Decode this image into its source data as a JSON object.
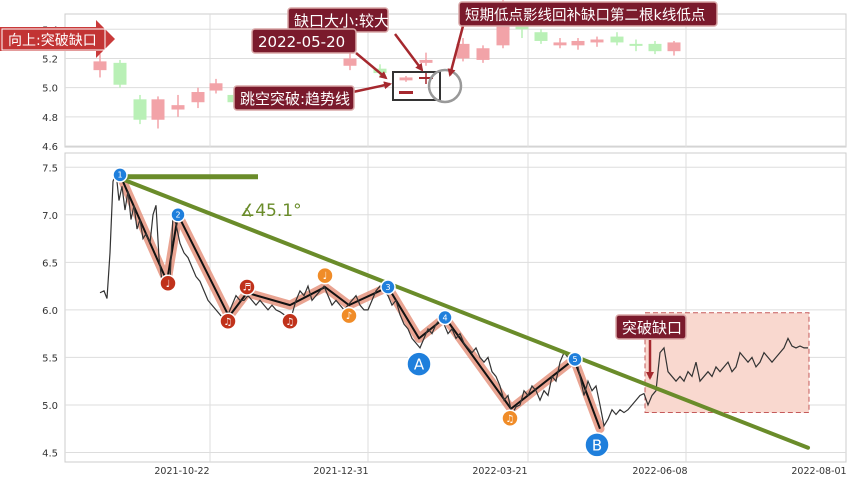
{
  "chart_data": [
    {
      "type": "candlestick",
      "y_ticks": [
        "5.4",
        "5.2",
        "5.0",
        "4.8",
        "4.6"
      ],
      "ylim": [
        4.6,
        5.45
      ],
      "candles": [
        {
          "x": 100,
          "open": 5.12,
          "close": 5.18,
          "high": 5.23,
          "low": 5.07
        },
        {
          "x": 120,
          "open": 5.17,
          "close": 5.02,
          "high": 5.19,
          "low": 5.0
        },
        {
          "x": 140,
          "open": 4.92,
          "close": 4.78,
          "high": 4.95,
          "low": 4.75
        },
        {
          "x": 158,
          "open": 4.78,
          "close": 4.92,
          "high": 4.94,
          "low": 4.72
        },
        {
          "x": 178,
          "open": 4.85,
          "close": 4.88,
          "high": 4.95,
          "low": 4.8
        },
        {
          "x": 198,
          "open": 4.9,
          "close": 4.97,
          "high": 5.0,
          "low": 4.86
        },
        {
          "x": 216,
          "open": 4.98,
          "close": 5.03,
          "high": 5.06,
          "low": 4.96
        },
        {
          "x": 234,
          "open": 4.95,
          "close": 4.9,
          "high": 4.97,
          "low": 4.87
        },
        {
          "x": 254,
          "open": 4.9,
          "close": 4.92,
          "high": 4.96,
          "low": 4.86
        },
        {
          "x": 272,
          "open": 4.88,
          "close": 4.93,
          "high": 4.95,
          "low": 4.86
        },
        {
          "x": 350,
          "open": 5.15,
          "close": 5.2,
          "high": 5.24,
          "low": 5.12
        },
        {
          "x": 380,
          "open": 5.13,
          "close": 5.1,
          "high": 5.16,
          "low": 5.08
        },
        {
          "x": 406,
          "open": 5.05,
          "close": 5.07,
          "high": 5.08,
          "low": 5.04
        },
        {
          "x": 426,
          "open": 5.17,
          "close": 5.19,
          "high": 5.24,
          "low": 5.15
        },
        {
          "x": 463,
          "open": 5.2,
          "close": 5.3,
          "high": 5.34,
          "low": 5.18
        },
        {
          "x": 483,
          "open": 5.19,
          "close": 5.27,
          "high": 5.29,
          "low": 5.17
        },
        {
          "x": 503,
          "open": 5.29,
          "close": 5.57,
          "high": 5.6,
          "low": 5.27
        },
        {
          "x": 522,
          "open": 5.52,
          "close": 5.4,
          "high": 5.55,
          "low": 5.34
        },
        {
          "x": 541,
          "open": 5.38,
          "close": 5.32,
          "high": 5.4,
          "low": 5.3
        },
        {
          "x": 560,
          "open": 5.29,
          "close": 5.31,
          "high": 5.34,
          "low": 5.27
        },
        {
          "x": 578,
          "open": 5.29,
          "close": 5.32,
          "high": 5.34,
          "low": 5.26
        },
        {
          "x": 597,
          "open": 5.31,
          "close": 5.33,
          "high": 5.35,
          "low": 5.28
        },
        {
          "x": 617,
          "open": 5.35,
          "close": 5.31,
          "high": 5.38,
          "low": 5.29
        },
        {
          "x": 636,
          "open": 5.3,
          "close": 5.29,
          "high": 5.33,
          "low": 5.25
        },
        {
          "x": 655,
          "open": 5.3,
          "close": 5.25,
          "high": 5.32,
          "low": 5.23
        },
        {
          "x": 674,
          "open": 5.25,
          "close": 5.31,
          "high": 5.32,
          "low": 5.22
        }
      ]
    },
    {
      "type": "line",
      "x_ticks": [
        "2021-10-22",
        "2021-12-31",
        "2022-03-21",
        "2022-06-08",
        "2022-08-01"
      ],
      "y_ticks": [
        "7.5",
        "7.0",
        "6.5",
        "6.0",
        "5.5",
        "5.0",
        "4.5"
      ],
      "ylim": [
        4.4,
        7.65
      ],
      "price_series": [
        [
          100,
          6.18
        ],
        [
          104,
          6.2
        ],
        [
          107,
          6.12
        ],
        [
          110,
          6.6
        ],
        [
          113,
          7.35
        ],
        [
          116,
          7.45
        ],
        [
          119,
          7.15
        ],
        [
          122,
          7.3
        ],
        [
          125,
          7.05
        ],
        [
          128,
          7.25
        ],
        [
          131,
          6.95
        ],
        [
          134,
          7.1
        ],
        [
          137,
          6.85
        ],
        [
          140,
          6.95
        ],
        [
          143,
          6.75
        ],
        [
          146,
          6.8
        ],
        [
          150,
          6.7
        ],
        [
          153,
          7.0
        ],
        [
          156,
          7.1
        ],
        [
          159,
          6.55
        ],
        [
          162,
          6.3
        ],
        [
          166,
          6.35
        ],
        [
          170,
          6.3
        ],
        [
          173,
          7.0
        ],
        [
          176,
          6.9
        ],
        [
          180,
          6.7
        ],
        [
          184,
          6.6
        ],
        [
          188,
          6.55
        ],
        [
          192,
          6.45
        ],
        [
          196,
          6.35
        ],
        [
          200,
          6.3
        ],
        [
          204,
          6.2
        ],
        [
          208,
          6.1
        ],
        [
          212,
          6.05
        ],
        [
          216,
          6.0
        ],
        [
          220,
          5.95
        ],
        [
          224,
          5.9
        ],
        [
          228,
          5.95
        ],
        [
          232,
          6.05
        ],
        [
          236,
          6.15
        ],
        [
          240,
          6.1
        ],
        [
          244,
          6.1
        ],
        [
          248,
          6.15
        ],
        [
          252,
          6.1
        ],
        [
          256,
          6.05
        ],
        [
          260,
          6.1
        ],
        [
          264,
          6.05
        ],
        [
          268,
          6.0
        ],
        [
          272,
          6.05
        ],
        [
          276,
          6.0
        ],
        [
          280,
          5.98
        ],
        [
          284,
          5.95
        ],
        [
          288,
          5.9
        ],
        [
          292,
          5.95
        ],
        [
          296,
          6.1
        ],
        [
          300,
          6.2
        ],
        [
          304,
          6.15
        ],
        [
          308,
          6.25
        ],
        [
          312,
          6.1
        ],
        [
          316,
          6.15
        ],
        [
          320,
          6.2
        ],
        [
          324,
          6.25
        ],
        [
          328,
          6.15
        ],
        [
          332,
          6.05
        ],
        [
          336,
          6.1
        ],
        [
          340,
          6.05
        ],
        [
          344,
          6.0
        ],
        [
          348,
          6.05
        ],
        [
          352,
          6.1
        ],
        [
          356,
          6.15
        ],
        [
          360,
          6.05
        ],
        [
          364,
          6.0
        ],
        [
          368,
          6.0
        ],
        [
          372,
          6.1
        ],
        [
          376,
          6.2
        ],
        [
          380,
          6.25
        ],
        [
          384,
          6.2
        ],
        [
          388,
          6.15
        ],
        [
          392,
          6.05
        ],
        [
          396,
          6.1
        ],
        [
          400,
          5.95
        ],
        [
          404,
          5.85
        ],
        [
          408,
          5.8
        ],
        [
          412,
          5.7
        ],
        [
          416,
          5.65
        ],
        [
          420,
          5.6
        ],
        [
          424,
          5.7
        ],
        [
          428,
          5.8
        ],
        [
          432,
          5.75
        ],
        [
          436,
          5.85
        ],
        [
          440,
          5.9
        ],
        [
          444,
          5.85
        ],
        [
          448,
          5.75
        ],
        [
          452,
          5.8
        ],
        [
          456,
          5.7
        ],
        [
          460,
          5.75
        ],
        [
          464,
          5.65
        ],
        [
          468,
          5.6
        ],
        [
          472,
          5.55
        ],
        [
          476,
          5.6
        ],
        [
          480,
          5.5
        ],
        [
          484,
          5.45
        ],
        [
          488,
          5.5
        ],
        [
          492,
          5.35
        ],
        [
          496,
          5.3
        ],
        [
          500,
          5.2
        ],
        [
          504,
          5.05
        ],
        [
          508,
          5.1
        ],
        [
          512,
          4.9
        ],
        [
          516,
          4.98
        ],
        [
          520,
          5.0
        ],
        [
          524,
          5.15
        ],
        [
          528,
          5.1
        ],
        [
          532,
          5.2
        ],
        [
          536,
          5.15
        ],
        [
          540,
          5.05
        ],
        [
          544,
          5.15
        ],
        [
          548,
          5.1
        ],
        [
          552,
          5.3
        ],
        [
          556,
          5.25
        ],
        [
          560,
          5.45
        ],
        [
          564,
          5.55
        ],
        [
          568,
          5.5
        ],
        [
          572,
          5.45
        ],
        [
          576,
          5.5
        ],
        [
          580,
          5.3
        ],
        [
          584,
          5.1
        ],
        [
          588,
          5.25
        ],
        [
          592,
          5.15
        ],
        [
          596,
          5.2
        ],
        [
          600,
          5.0
        ],
        [
          604,
          4.78
        ],
        [
          608,
          4.85
        ],
        [
          612,
          4.95
        ],
        [
          616,
          4.9
        ],
        [
          620,
          4.95
        ],
        [
          624,
          4.92
        ],
        [
          628,
          4.95
        ],
        [
          632,
          5.0
        ],
        [
          636,
          5.05
        ],
        [
          640,
          5.1
        ],
        [
          644,
          5.12
        ],
        [
          648,
          5.0
        ],
        [
          652,
          5.1
        ],
        [
          656,
          5.15
        ],
        [
          660,
          5.55
        ],
        [
          664,
          5.6
        ],
        [
          668,
          5.35
        ],
        [
          672,
          5.3
        ],
        [
          676,
          5.25
        ],
        [
          680,
          5.3
        ],
        [
          684,
          5.25
        ],
        [
          688,
          5.35
        ],
        [
          692,
          5.3
        ],
        [
          696,
          5.45
        ],
        [
          700,
          5.25
        ],
        [
          704,
          5.3
        ],
        [
          708,
          5.35
        ],
        [
          712,
          5.3
        ],
        [
          716,
          5.4
        ],
        [
          720,
          5.35
        ],
        [
          724,
          5.4
        ],
        [
          728,
          5.45
        ],
        [
          732,
          5.35
        ],
        [
          736,
          5.4
        ],
        [
          740,
          5.55
        ],
        [
          744,
          5.5
        ],
        [
          748,
          5.45
        ],
        [
          752,
          5.5
        ],
        [
          756,
          5.4
        ],
        [
          760,
          5.45
        ],
        [
          764,
          5.55
        ],
        [
          768,
          5.5
        ],
        [
          772,
          5.45
        ],
        [
          776,
          5.5
        ],
        [
          780,
          5.55
        ],
        [
          784,
          5.6
        ],
        [
          788,
          5.7
        ],
        [
          792,
          5.62
        ],
        [
          796,
          5.6
        ],
        [
          800,
          5.62
        ],
        [
          804,
          5.6
        ],
        [
          808,
          5.6
        ]
      ],
      "zigzag": [
        [
          120,
          7.42
        ],
        [
          167,
          6.3
        ],
        [
          178,
          7.0
        ],
        [
          229,
          5.93
        ],
        [
          247,
          6.18
        ],
        [
          290,
          6.05
        ],
        [
          325,
          6.24
        ],
        [
          349,
          6.05
        ],
        [
          388,
          6.24
        ],
        [
          419,
          5.7
        ],
        [
          445,
          5.92
        ],
        [
          511,
          4.96
        ],
        [
          574,
          5.48
        ],
        [
          600,
          4.75
        ]
      ],
      "trendline": {
        "x1": 116,
        "y1": 7.4,
        "x2": 808,
        "y2": 4.55
      },
      "horizontal_line": {
        "x1": 116,
        "x2": 258,
        "y": 7.4
      },
      "angle_label": "∡45.1°",
      "numbered_markers": [
        {
          "x": 120,
          "y": 7.42,
          "label": "1"
        },
        {
          "x": 178,
          "y": 7.0,
          "label": "2"
        },
        {
          "x": 388,
          "y": 6.24,
          "label": "3"
        },
        {
          "x": 445,
          "y": 5.92,
          "label": "4"
        },
        {
          "x": 575,
          "y": 5.48,
          "label": "5"
        }
      ],
      "red_note_markers": [
        {
          "x": 168,
          "y": 6.28,
          "label": "♩"
        },
        {
          "x": 228,
          "y": 5.88,
          "label": "♫"
        },
        {
          "x": 247,
          "y": 6.24,
          "label": "♬"
        },
        {
          "x": 290,
          "y": 5.88,
          "label": "♫"
        }
      ],
      "orange_note_markers": [
        {
          "x": 325,
          "y": 6.36,
          "label": "♩"
        },
        {
          "x": 349,
          "y": 5.94,
          "label": "♪"
        },
        {
          "x": 510,
          "y": 4.86,
          "label": "♫"
        }
      ],
      "big_markers": [
        {
          "x": 419,
          "y": 5.43,
          "label": "A"
        },
        {
          "x": 597,
          "y": 4.58,
          "label": "B"
        }
      ],
      "gap_zone": {
        "x1": 645,
        "x2": 809,
        "ylow": 4.92,
        "yhigh": 5.97
      },
      "gap_label": "突破缺口"
    }
  ],
  "annotations": {
    "direction": "向上:突破缺口",
    "gap_size": "缺口大小:较大",
    "date": "2022-05-20",
    "breakout": "跳空突破:趋势线",
    "shadow_fill": "短期低点影线回补缺口第二根k线低点"
  },
  "colors": {
    "up": "#f2a3a8",
    "down": "#b9f0b6",
    "trend": "#6a8c2a",
    "zigzag": "#e2866d",
    "price": "#333333",
    "arrow": "#a5282e",
    "label_bg": "#7a1a2c",
    "marker_blue": "#1f7fdc",
    "marker_red": "#c0321b",
    "marker_orange": "#f08c28",
    "gap_zone": "#f9d8cf"
  }
}
